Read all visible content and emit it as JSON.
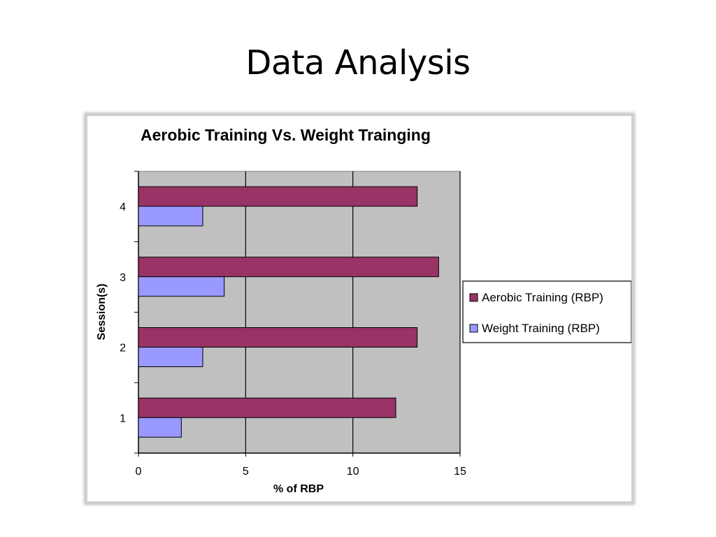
{
  "slide": {
    "title": "Data Analysis"
  },
  "chart_data": {
    "type": "bar",
    "orientation": "horizontal",
    "title": "Aerobic Training Vs. Weight Trainging",
    "xlabel": "% of RBP",
    "ylabel": "Session(s)",
    "categories": [
      "1",
      "2",
      "3",
      "4"
    ],
    "series": [
      {
        "name": "Aerobic Training (RBP)",
        "values": [
          12,
          13,
          14,
          13
        ],
        "color": "#993366"
      },
      {
        "name": "Weight Training (RBP)",
        "values": [
          2,
          3,
          4,
          3
        ],
        "color": "#9999ff"
      }
    ],
    "xlim": [
      0,
      15
    ],
    "xticks": [
      "0",
      "5",
      "10",
      "15"
    ],
    "grid": true,
    "plot_background": "#c0c0c0",
    "legend_position": "right"
  }
}
